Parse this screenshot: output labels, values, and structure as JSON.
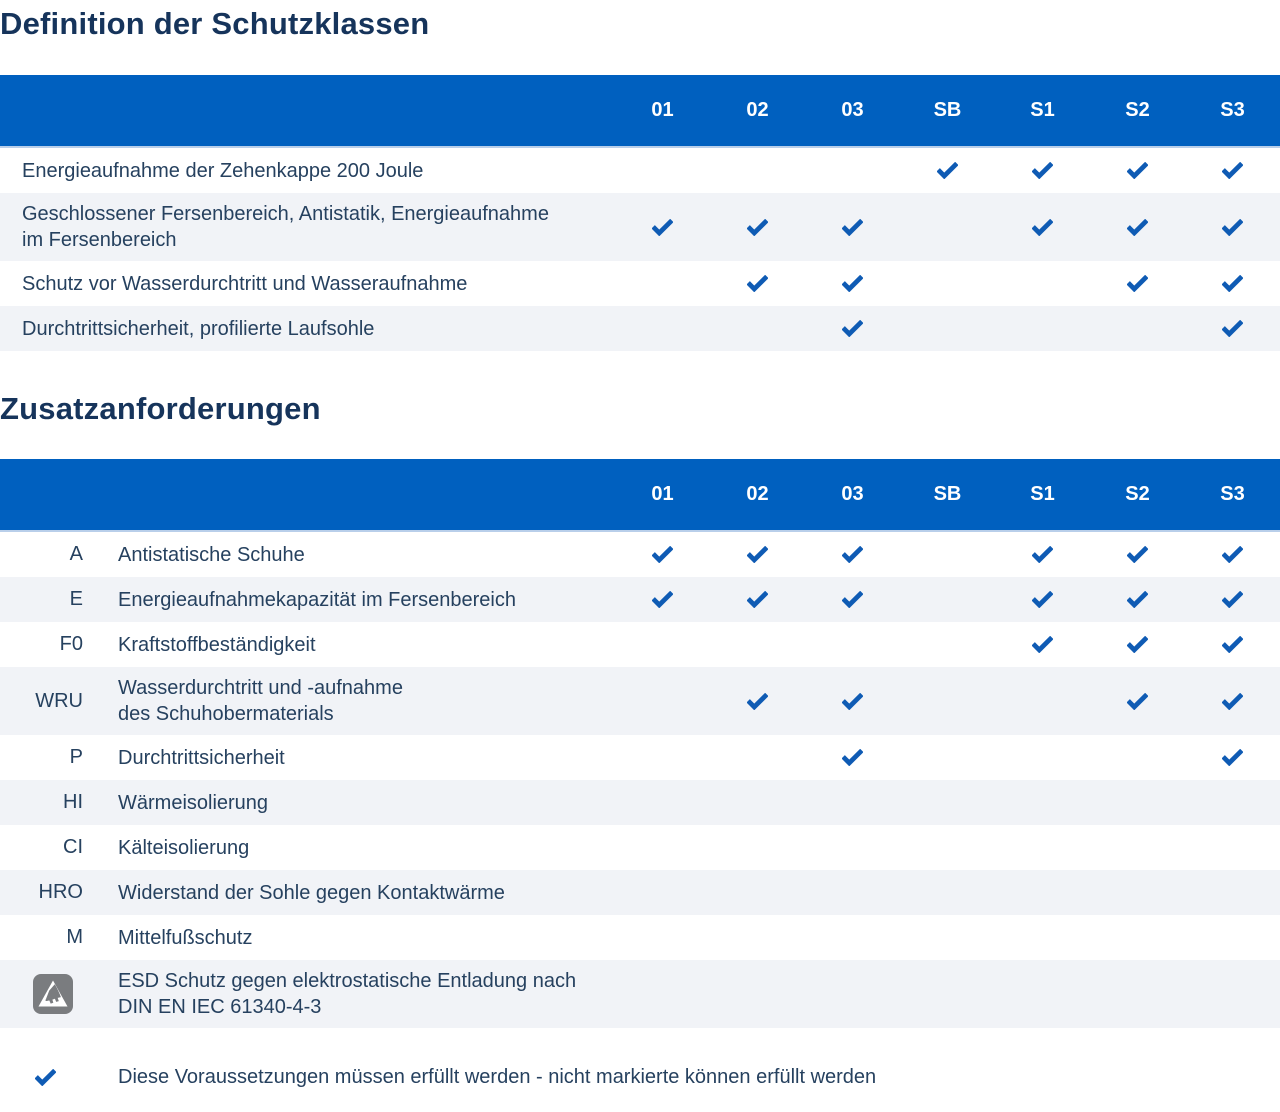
{
  "sections": [
    {
      "title": "Definition der Schutzklassen"
    },
    {
      "title": "Zusatzanforderungen"
    }
  ],
  "columns": [
    "01",
    "02",
    "03",
    "SB",
    "S1",
    "S2",
    "S3"
  ],
  "table1": {
    "rows": [
      {
        "label": "Energieaufnahme der Zehenkappe 200 Joule",
        "checks": [
          0,
          0,
          0,
          1,
          1,
          1,
          1
        ]
      },
      {
        "label": "Geschlossener Fersenbereich, Antistatik, Energieaufnahme\nim Fersenbereich",
        "checks": [
          1,
          1,
          1,
          0,
          1,
          1,
          1
        ]
      },
      {
        "label": "Schutz vor Wasserdurchtritt und Wasseraufnahme",
        "checks": [
          0,
          1,
          1,
          0,
          0,
          1,
          1
        ]
      },
      {
        "label": "Durchtrittsicherheit, profilierte Laufsohle",
        "checks": [
          0,
          0,
          1,
          0,
          0,
          0,
          1
        ]
      }
    ]
  },
  "table2": {
    "rows": [
      {
        "code": "A",
        "label": "Antistatische Schuhe",
        "checks": [
          1,
          1,
          1,
          0,
          1,
          1,
          1
        ]
      },
      {
        "code": "E",
        "label": "Energieaufnahmekapazität im Fersenbereich",
        "checks": [
          1,
          1,
          1,
          0,
          1,
          1,
          1
        ]
      },
      {
        "code": "F0",
        "label": "Kraftstoffbeständigkeit",
        "checks": [
          0,
          0,
          0,
          0,
          1,
          1,
          1
        ]
      },
      {
        "code": "WRU",
        "label": "Wasserdurchtritt und -aufnahme\ndes Schuhobermaterials",
        "checks": [
          0,
          1,
          1,
          0,
          0,
          1,
          1
        ]
      },
      {
        "code": "P",
        "label": "Durchtrittsicherheit",
        "checks": [
          0,
          0,
          1,
          0,
          0,
          0,
          1
        ]
      },
      {
        "code": "HI",
        "label": "Wärmeisolierung",
        "checks": [
          0,
          0,
          0,
          0,
          0,
          0,
          0
        ]
      },
      {
        "code": "CI",
        "label": "Kälteisolierung",
        "checks": [
          0,
          0,
          0,
          0,
          0,
          0,
          0
        ]
      },
      {
        "code": "HRO",
        "label": "Widerstand der Sohle gegen Kontaktwärme",
        "checks": [
          0,
          0,
          0,
          0,
          0,
          0,
          0
        ]
      },
      {
        "code": "M",
        "label": "Mittelfußschutz",
        "checks": [
          0,
          0,
          0,
          0,
          0,
          0,
          0
        ]
      }
    ],
    "esd_row": {
      "icon": "esd-icon",
      "label": "ESD Schutz gegen elektrostatische Entladung nach\nDIN EN IEC 61340-4-3"
    }
  },
  "legend": {
    "icon": "check-icon",
    "text": "Diese Voraussetzungen müssen erfüllt werden - nicht markierte können erfüllt werden"
  },
  "colors": {
    "header_blue": "#0060BF",
    "check_blue": "#0F5BB4",
    "row_gray": "#F1F3F7",
    "title_navy": "#16345B",
    "body_navy": "#26415F",
    "esd_gray": "#7A7C7F",
    "header_underline": "#B9CFEA"
  }
}
